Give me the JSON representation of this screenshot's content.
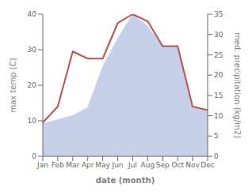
{
  "chart_data": {
    "type": "line",
    "categories": [
      "Jan",
      "Feb",
      "Mar",
      "Apr",
      "May",
      "Jun",
      "Jul",
      "Aug",
      "Sep",
      "Oct",
      "Nov",
      "Dec"
    ],
    "xlabel": "date (month)",
    "ylabel": "max temp (C)",
    "y2label": "med. precipitation (kg/m2)",
    "ylim": [
      0,
      40
    ],
    "yticks": [
      0,
      10,
      20,
      30,
      40
    ],
    "y2lim": [
      0,
      35
    ],
    "y2ticks": [
      0,
      5,
      10,
      15,
      20,
      25,
      30,
      35
    ],
    "grid": false,
    "series": [
      {
        "type": "area",
        "axis": "y2",
        "color": "#c5cfe8",
        "values": [
          8.0,
          9.0,
          10.0,
          12.0,
          22.0,
          29.0,
          35.0,
          32.0,
          27.0,
          27.0,
          12.0,
          11.0
        ]
      },
      {
        "type": "line",
        "axis": "y",
        "color": "#c0504d",
        "values": [
          9.5,
          14.0,
          29.5,
          27.5,
          27.5,
          37.5,
          40.0,
          38.0,
          31.0,
          31.0,
          14.0,
          13.0
        ]
      }
    ]
  }
}
